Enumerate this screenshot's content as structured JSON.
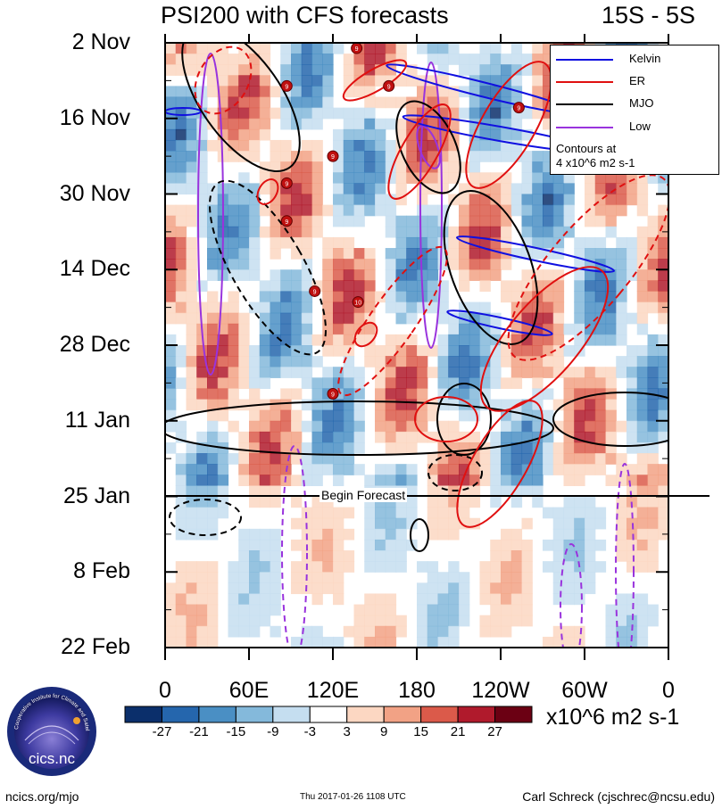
{
  "chart_data": {
    "type": "heatmap",
    "title": "PSI200 with CFS forecasts",
    "region": "15S - 5S",
    "y_tick_labels": [
      "2 Nov",
      "16 Nov",
      "30 Nov",
      "14 Dec",
      "28 Dec",
      "11 Jan",
      "25 Jan",
      "8 Feb",
      "22 Feb"
    ],
    "x_tick_labels": [
      "0",
      "60E",
      "120E",
      "180",
      "120W",
      "60W",
      "0"
    ],
    "x_range_deg": [
      0,
      360
    ],
    "time_range_days": [
      0,
      112
    ],
    "forecast_start": "25 Jan",
    "forecast_label": "Begin Forecast",
    "colorbar": {
      "levels": [
        -27,
        -21,
        -15,
        -9,
        -3,
        3,
        9,
        15,
        21,
        27
      ],
      "colors": [
        "#0b2f6b",
        "#2566ad",
        "#4a8fc4",
        "#84b9db",
        "#c5def0",
        "#ffffff",
        "#fcd7c2",
        "#f2a285",
        "#db5a4a",
        "#b01a2c",
        "#6b0013"
      ],
      "units": "x10^6 m2 s-1"
    },
    "legend": {
      "entries": [
        {
          "name": "Kelvin",
          "color": "#1010e0"
        },
        {
          "name": "ER",
          "color": "#e01010"
        },
        {
          "name": "MJO",
          "color": "#000000"
        },
        {
          "name": "Low",
          "color": "#9933dd"
        }
      ],
      "note_line1": "Contours at",
      "note_line2": "4 x10^6 m2 s-1"
    },
    "storm_markers": [
      {
        "label": "9",
        "lon": 137,
        "day": 1
      },
      {
        "label": "9",
        "lon": 160,
        "day": 8
      },
      {
        "label": "9",
        "lon": 87,
        "day": 8
      },
      {
        "label": "9",
        "lon": 253,
        "day": 12
      },
      {
        "label": "9",
        "lon": 120,
        "day": 21
      },
      {
        "label": "9",
        "lon": 87,
        "day": 26
      },
      {
        "label": "9",
        "lon": 87,
        "day": 33
      },
      {
        "label": "9",
        "lon": 107,
        "day": 46
      },
      {
        "label": "10",
        "lon": 138,
        "day": 48
      },
      {
        "label": "9",
        "lon": 120,
        "day": 65
      }
    ]
  },
  "logo": {
    "text": "cics.nc",
    "ring_text": "Cooperative Institute for Climate and Satellites"
  },
  "footer": {
    "left": "ncics.org/mjo",
    "middle": "Thu 2017-01-26 1108 UTC",
    "right": "Carl Schreck (cjschrec@ncsu.edu)"
  }
}
